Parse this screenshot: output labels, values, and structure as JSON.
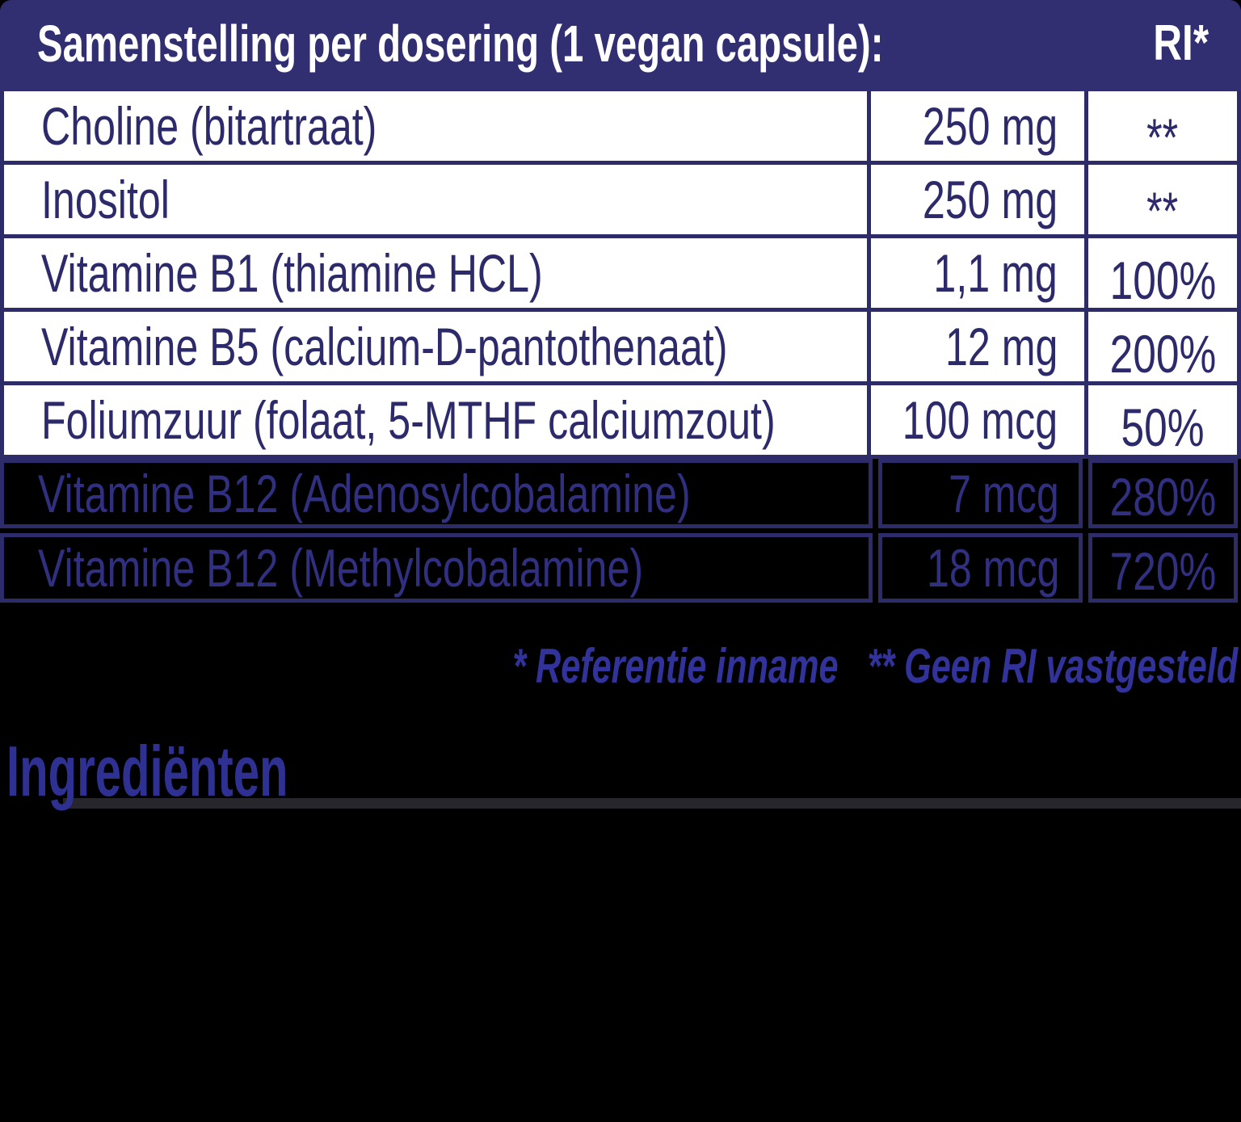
{
  "page": {
    "background": "#000000"
  },
  "header": {
    "title": "Samenstelling per dosering (1 vegan capsule):",
    "ri_column_label": "RI*",
    "background_color": "#312e72",
    "text_color": "#ffffff"
  },
  "table": {
    "border_color": "#2e2b6b",
    "row_background": "#ffffff",
    "text_color": "#2d2a6b",
    "transparent_row_text_color": "#312f80",
    "rows": [
      {
        "name": "Choline (bitartraat)",
        "amount": "250 mg",
        "ri": "**"
      },
      {
        "name": "Inositol",
        "amount": "250 mg",
        "ri": "**"
      },
      {
        "name": "Vitamine B1 (thiamine HCL)",
        "amount": "1,1 mg",
        "ri": "100%"
      },
      {
        "name": "Vitamine B5 (calcium-D-pantothenaat)",
        "amount": "12 mg",
        "ri": "200%"
      },
      {
        "name": "Foliumzuur (folaat, 5-MTHF calciumzout)",
        "amount": "100 mcg",
        "ri": "50%"
      },
      {
        "name": "Vitamine B12 (Adenosylcobalamine)",
        "amount": "7 mcg",
        "ri": "280%"
      },
      {
        "name": "Vitamine B12 (Methylcobalamine)",
        "amount": "18 mcg",
        "ri": "720%"
      }
    ]
  },
  "footnote": {
    "text": "* Referentie inname   ** Geen RI vastgesteld",
    "color": "#32329b"
  },
  "ingredients": {
    "heading": "Ingrediënten",
    "color": "#2e3192",
    "divider_color": "#26262c"
  }
}
